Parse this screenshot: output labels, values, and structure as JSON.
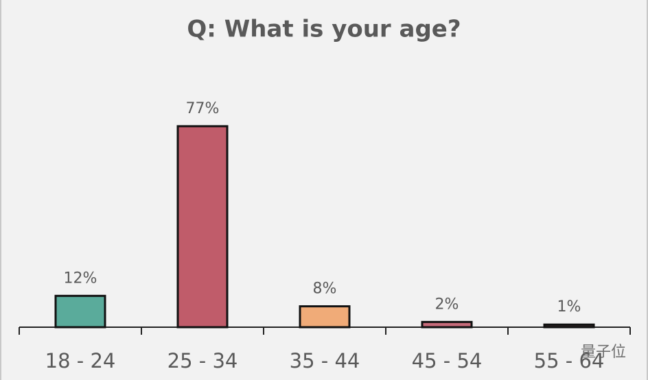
{
  "chart_data": {
    "type": "bar",
    "title": "Q: What is your age?",
    "categories": [
      "18 - 24",
      "25 - 34",
      "35 - 44",
      "45 - 54",
      "55 - 64"
    ],
    "values": [
      12,
      77,
      8,
      2,
      1
    ],
    "value_labels": [
      "12%",
      "77%",
      "8%",
      "2%",
      "1%"
    ],
    "colors": [
      "#5aab9b",
      "#c05c6a",
      "#f0ab78",
      "#c76b7a",
      "#3a2a2a"
    ],
    "watermark": "量子位"
  }
}
